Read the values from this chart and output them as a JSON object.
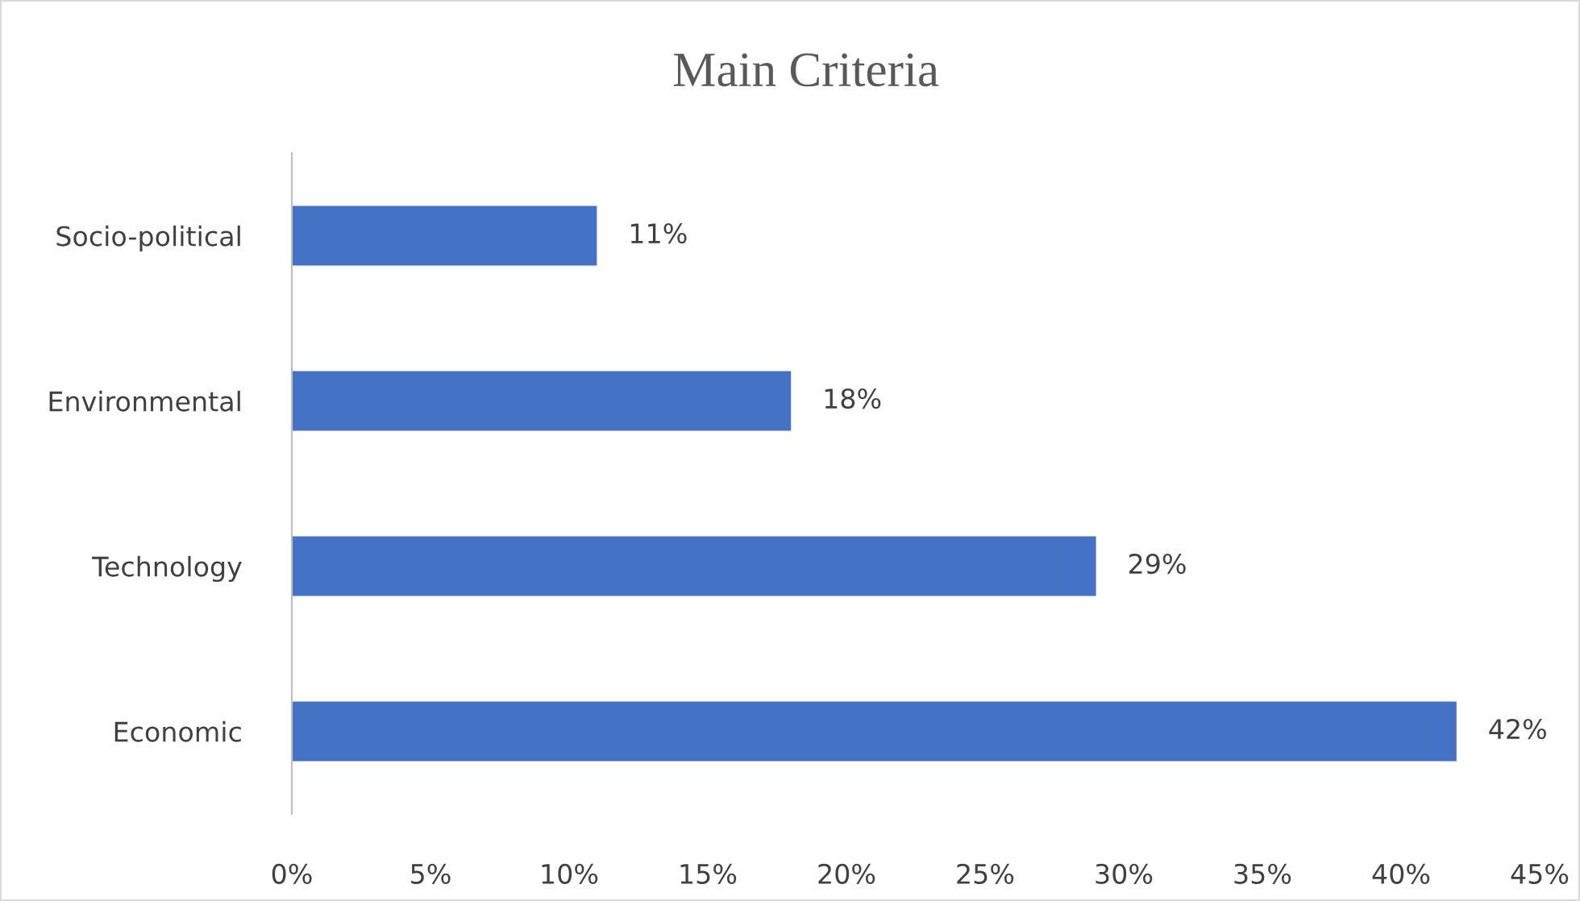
{
  "chart_data": {
    "type": "bar",
    "title": "Main Criteria",
    "orientation": "horizontal",
    "categories": [
      "Socio-political",
      "Environmental",
      "Technology",
      "Economic"
    ],
    "values": [
      11,
      18,
      29,
      42
    ],
    "color": "#4472c4",
    "value_labels": [
      "11%",
      "18%",
      "29%",
      "42%"
    ],
    "xlim": [
      0,
      45
    ],
    "xticks": [
      {
        "value": 0,
        "label": "0%"
      },
      {
        "value": 5,
        "label": "5%"
      },
      {
        "value": 10,
        "label": "10%"
      },
      {
        "value": 15,
        "label": "15%"
      },
      {
        "value": 20,
        "label": "20%"
      },
      {
        "value": 25,
        "label": "25%"
      },
      {
        "value": 30,
        "label": "30%"
      },
      {
        "value": 35,
        "label": "35%"
      },
      {
        "value": 40,
        "label": "40%"
      },
      {
        "value": 45,
        "label": "45%"
      }
    ],
    "grid": false,
    "legend": false
  }
}
